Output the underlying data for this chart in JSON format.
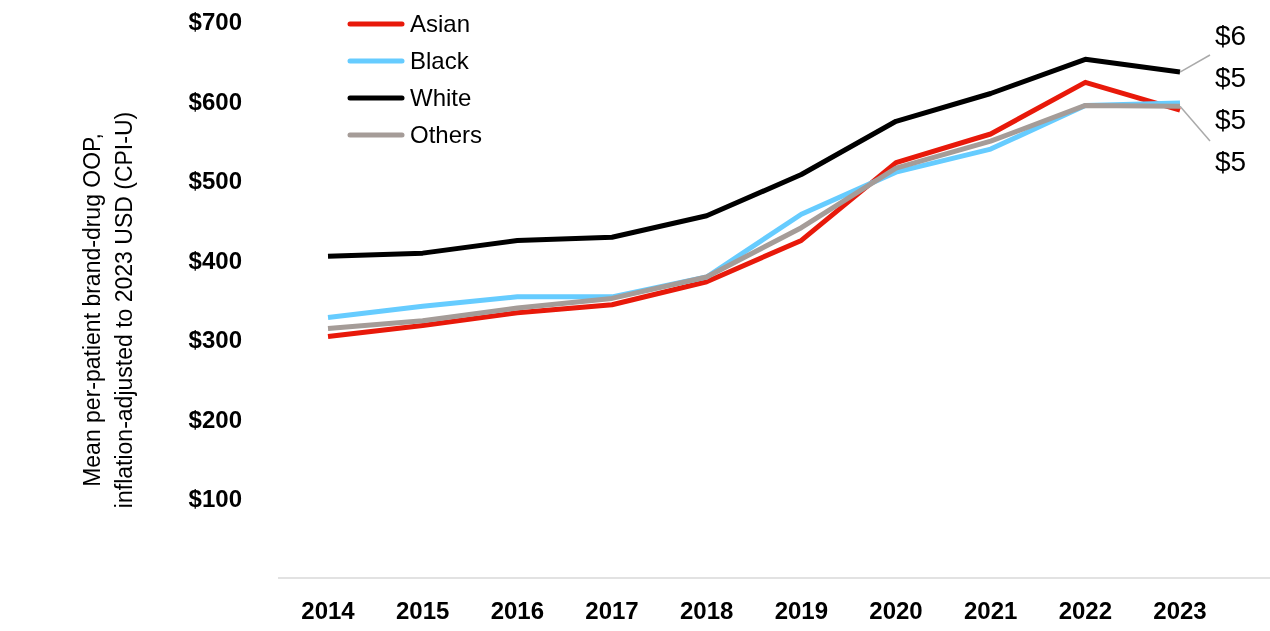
{
  "chart_data": {
    "type": "line",
    "ylabel": "Mean per-patient brand-drug OOP,\ninflation-adjusted to 2023 USD  (CPI-U)",
    "categories": [
      "2014",
      "2015",
      "2016",
      "2017",
      "2018",
      "2019",
      "2020",
      "2021",
      "2022",
      "2023"
    ],
    "series": [
      {
        "name": "Asian",
        "color": "#e8190a",
        "values": [
          304,
          318,
          334,
          344,
          373,
          425,
          523,
          559,
          624,
          589
        ]
      },
      {
        "name": "Black",
        "color": "#66ccff",
        "values": [
          328,
          342,
          354,
          354,
          379,
          458,
          511,
          540,
          595,
          598
        ]
      },
      {
        "name": "White",
        "color": "#000000",
        "values": [
          405,
          409,
          425,
          429,
          456,
          508,
          575,
          610,
          653,
          637
        ]
      },
      {
        "name": "Others",
        "color": "#a59c98",
        "values": [
          314,
          324,
          340,
          352,
          379,
          441,
          516,
          550,
          595,
          594
        ]
      }
    ],
    "ylim": [
      0,
      700
    ],
    "yticks": [
      {
        "value": 100,
        "label": "$100"
      },
      {
        "value": 200,
        "label": "$200"
      },
      {
        "value": 300,
        "label": "$300"
      },
      {
        "value": 400,
        "label": "$400"
      },
      {
        "value": 500,
        "label": "$500"
      },
      {
        "value": 600,
        "label": "$600"
      },
      {
        "value": 700,
        "label": "$700"
      }
    ],
    "annotations": [
      "$6",
      "$5",
      "$5",
      "$5"
    ],
    "legend": "top left",
    "grid": false,
    "marker": "none",
    "line_style": "solid"
  }
}
